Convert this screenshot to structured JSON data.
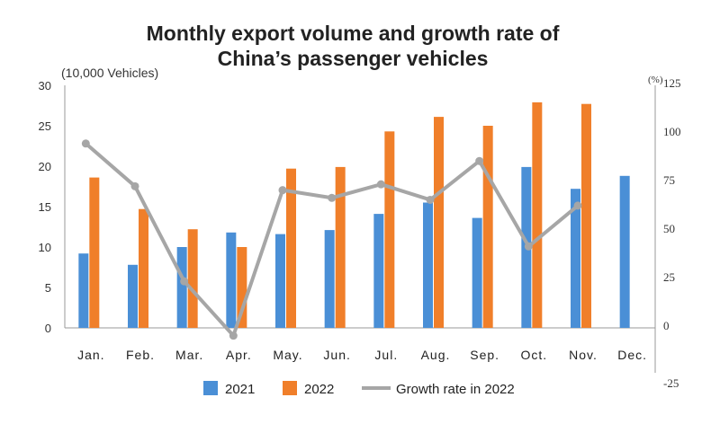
{
  "chart_data": {
    "type": "bar",
    "title": [
      "Monthly export volume and growth rate of",
      "China’s passenger vehicles"
    ],
    "ylabel": "(10,000 Vehicles)",
    "y2label": "(%)",
    "categories": [
      "Jan.",
      "Feb.",
      "Mar.",
      "Apr.",
      "May.",
      "Jun.",
      "Jul.",
      "Aug.",
      "Sep.",
      "Oct.",
      "Nov.",
      "Dec."
    ],
    "ylim": [
      0,
      30
    ],
    "yticks": [
      0,
      5,
      10,
      15,
      20,
      25,
      30
    ],
    "y2lim": [
      -25,
      125
    ],
    "y2ticks": [
      -25,
      0,
      25,
      50,
      75,
      100,
      125
    ],
    "grid": false,
    "legend_position": "bottom",
    "series": [
      {
        "name": "2021",
        "type": "bar",
        "axis": "left",
        "color": "#4a8fd6",
        "values": [
          9.2,
          7.8,
          10.0,
          11.8,
          11.6,
          12.1,
          14.1,
          15.5,
          13.6,
          19.9,
          17.2,
          18.8
        ]
      },
      {
        "name": "2022",
        "type": "bar",
        "axis": "left",
        "color": "#f07f2a",
        "values": [
          18.6,
          14.7,
          12.2,
          10.0,
          19.7,
          19.9,
          24.3,
          26.1,
          25.0,
          27.9,
          27.7,
          null
        ]
      },
      {
        "name": "Growth rate in 2022",
        "type": "line",
        "axis": "right",
        "color": "#a6a6a6",
        "values": [
          95,
          73,
          24,
          -4,
          71,
          67,
          74,
          66,
          86,
          42,
          63,
          null
        ]
      }
    ],
    "colors": {
      "negative_tick": "#e03030"
    }
  }
}
